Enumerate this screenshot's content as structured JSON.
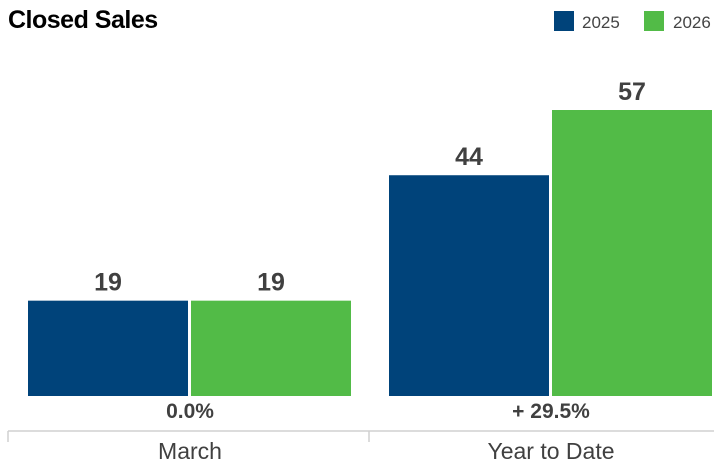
{
  "colors": {
    "series_2025": "#00437a",
    "series_2026": "#52bb47",
    "axis": "#cfcfcf",
    "text": "#404040"
  },
  "chart_data": {
    "type": "bar",
    "title": "Closed Sales",
    "legend_position": "top-right",
    "grid": false,
    "categories": [
      "March",
      "Year to Date"
    ],
    "series": [
      {
        "name": "2025",
        "values": [
          19,
          44
        ]
      },
      {
        "name": "2026",
        "values": [
          19,
          57
        ]
      }
    ],
    "data_labels": [
      [
        "19",
        "44"
      ],
      [
        "19",
        "57"
      ]
    ],
    "changes": [
      "0.0%",
      "+ 29.5%"
    ],
    "ylim": [
      0,
      62
    ]
  }
}
